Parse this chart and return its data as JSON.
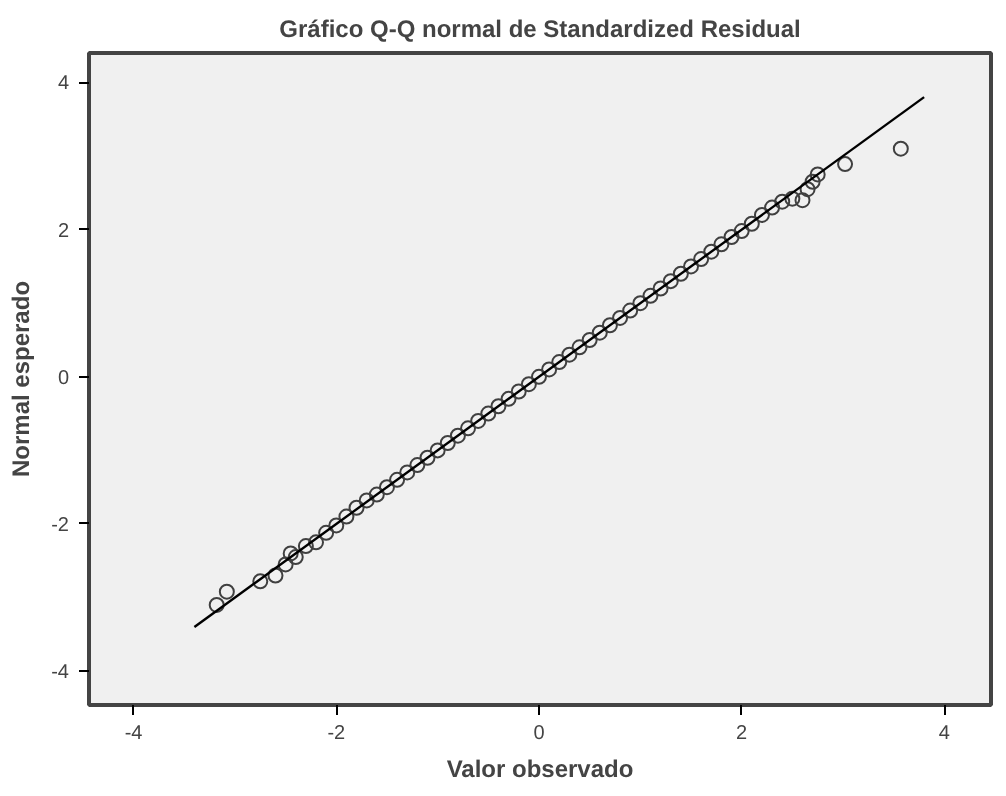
{
  "chart_data": {
    "type": "scatter",
    "title": "Gráfico Q-Q normal de Standardized Residual",
    "xlabel": "Valor observado",
    "ylabel": "Normal esperado",
    "xlim": [
      -4.44,
      4.46
    ],
    "ylim": [
      -4.46,
      4.4
    ],
    "xticks": [
      -4,
      -2,
      0,
      2,
      4
    ],
    "yticks": [
      -4,
      -2,
      0,
      2,
      4
    ],
    "grid": false,
    "marker": "circle",
    "series": [
      {
        "color": "#404040",
        "x": [
          -3.18,
          -3.08,
          -2.75,
          -2.6,
          -2.5,
          -2.45,
          -2.4,
          -2.3,
          -2.2,
          -2.1,
          -2.0,
          -1.9,
          -1.8,
          -1.7,
          -1.6,
          -1.5,
          -1.4,
          -1.3,
          -1.2,
          -1.1,
          -1.0,
          -0.9,
          -0.8,
          -0.7,
          -0.6,
          -0.5,
          -0.4,
          -0.3,
          -0.2,
          -0.1,
          0.0,
          0.1,
          0.2,
          0.3,
          0.4,
          0.5,
          0.6,
          0.7,
          0.8,
          0.9,
          1.0,
          1.1,
          1.2,
          1.3,
          1.4,
          1.5,
          1.6,
          1.7,
          1.8,
          1.9,
          2.0,
          2.1,
          2.2,
          2.3,
          2.4,
          2.5,
          2.6,
          2.65,
          2.7,
          2.75,
          3.02,
          3.57
        ],
        "values": [
          -3.1,
          -2.92,
          -2.78,
          -2.7,
          -2.55,
          -2.4,
          -2.45,
          -2.3,
          -2.25,
          -2.12,
          -2.02,
          -1.9,
          -1.78,
          -1.68,
          -1.6,
          -1.5,
          -1.4,
          -1.3,
          -1.2,
          -1.1,
          -1.0,
          -0.9,
          -0.8,
          -0.7,
          -0.6,
          -0.5,
          -0.4,
          -0.3,
          -0.2,
          -0.1,
          0.0,
          0.1,
          0.2,
          0.3,
          0.4,
          0.5,
          0.6,
          0.7,
          0.8,
          0.9,
          1.0,
          1.1,
          1.2,
          1.3,
          1.4,
          1.5,
          1.6,
          1.7,
          1.8,
          1.9,
          1.98,
          2.08,
          2.2,
          2.3,
          2.38,
          2.42,
          2.4,
          2.55,
          2.65,
          2.75,
          2.89,
          3.1
        ]
      },
      {
        "type": "line",
        "color": "#000000",
        "marker": "none",
        "line_style": "solid",
        "x": [
          -3.4,
          3.8
        ],
        "values": [
          -3.4,
          3.8
        ]
      }
    ]
  }
}
